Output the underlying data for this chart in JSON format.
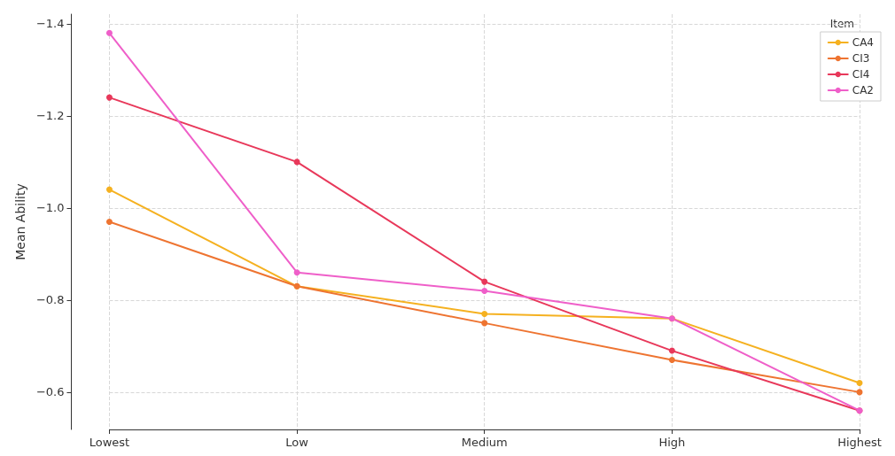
{
  "chart_data": {
    "type": "line",
    "ylabel": "Mean Ability",
    "legend_title": "Item",
    "categories": [
      "Lowest",
      "Low",
      "Medium",
      "High",
      "Highest"
    ],
    "series": [
      {
        "name": "CA4",
        "color": "#f5b120",
        "values": [
          -1.04,
          -0.83,
          -0.77,
          -0.76,
          -0.62
        ]
      },
      {
        "name": "CI3",
        "color": "#ee7431",
        "values": [
          -0.97,
          -0.83,
          -0.75,
          -0.67,
          -0.6
        ]
      },
      {
        "name": "CI4",
        "color": "#e8385a",
        "values": [
          -1.24,
          -1.1,
          -0.84,
          -0.69,
          -0.56
        ]
      },
      {
        "name": "CA2",
        "color": "#ef5fc9",
        "values": [
          -1.38,
          -0.86,
          -0.82,
          -0.76,
          -0.56
        ]
      }
    ],
    "ylim": [
      -0.519,
      -1.421
    ],
    "yticks": [
      {
        "value": -1.4,
        "label": "−1.4"
      },
      {
        "value": -1.2,
        "label": "−1.2"
      },
      {
        "value": -1.0,
        "label": "−1.0"
      },
      {
        "value": -0.8,
        "label": "−0.8"
      },
      {
        "value": -0.6,
        "label": "−0.6"
      }
    ],
    "grid": true,
    "legend": "top right",
    "marker": "circle",
    "line_style": "solid"
  }
}
